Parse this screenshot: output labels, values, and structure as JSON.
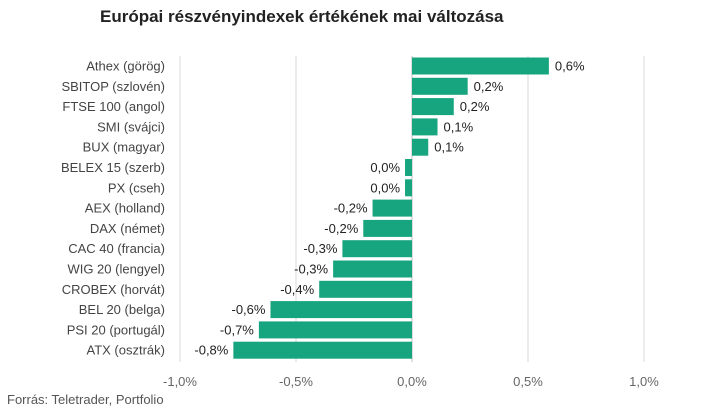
{
  "chart_data": {
    "type": "bar",
    "orientation": "horizontal",
    "title": "Európai részvényindexek értékének mai változása",
    "source": "Forrás: Teletrader, Portfolio",
    "categories": [
      "Athex (görög)",
      "SBITOP (szlovén)",
      "FTSE 100 (angol)",
      "SMI (svájci)",
      "BUX (magyar)",
      "BELEX 15 (szerb)",
      "PX (cseh)",
      "AEX (holland)",
      "DAX (német)",
      "CAC 40 (francia)",
      "WIG 20 (lengyel)",
      "CROBEX (horvát)",
      "BEL 20 (belga)",
      "PSI 20 (portugál)",
      "ATX (osztrák)"
    ],
    "values": [
      0.59,
      0.24,
      0.18,
      0.11,
      0.07,
      -0.03,
      -0.03,
      -0.17,
      -0.21,
      -0.3,
      -0.34,
      -0.4,
      -0.61,
      -0.66,
      -0.77
    ],
    "value_labels": [
      "0,6%",
      "0,2%",
      "0,2%",
      "0,1%",
      "0,1%",
      "0,0%",
      "0,0%",
      "-0,2%",
      "-0,2%",
      "-0,3%",
      "-0,3%",
      "-0,4%",
      "-0,6%",
      "-0,7%",
      "-0,8%"
    ],
    "xlim": [
      -1.0,
      1.0
    ],
    "xticks": [
      -1.0,
      -0.5,
      0.0,
      0.5,
      1.0
    ],
    "xtick_labels": [
      "-1,0%",
      "-0,5%",
      "0,0%",
      "0,5%",
      "1,0%"
    ],
    "grid": true,
    "bar_color": "#17a57f"
  }
}
